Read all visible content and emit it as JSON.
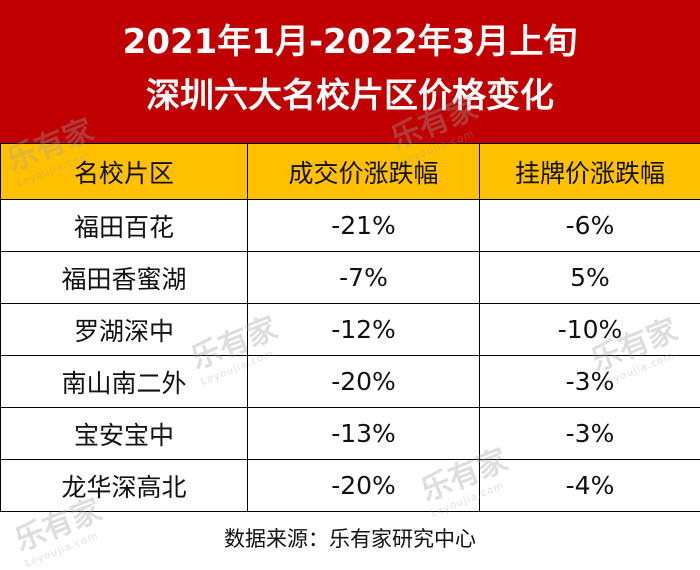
{
  "title": {
    "line1": "2021年1月-2022年3月上旬",
    "line2": "深圳六大名校片区价格变化"
  },
  "chart_data": {
    "type": "table",
    "columns": [
      "名校片区",
      "成交价涨跌幅",
      "挂牌价涨跌幅"
    ],
    "rows": [
      [
        "福田百花",
        "-21%",
        "-6%"
      ],
      [
        "福田香蜜湖",
        "-7%",
        "5%"
      ],
      [
        "罗湖深中",
        "-12%",
        "-10%"
      ],
      [
        "南山南二外",
        "-20%",
        "-3%"
      ],
      [
        "宝安宝中",
        "-13%",
        "-3%"
      ],
      [
        "龙华深高北",
        "-20%",
        "-4%"
      ]
    ]
  },
  "source": "数据来源：乐有家研究中心",
  "watermark": {
    "brand": "乐有家",
    "url": "Leyoujia.com"
  },
  "colors": {
    "title_bg": "#c00000",
    "header_bg": "#ffc000",
    "title_text": "#ffffff"
  }
}
